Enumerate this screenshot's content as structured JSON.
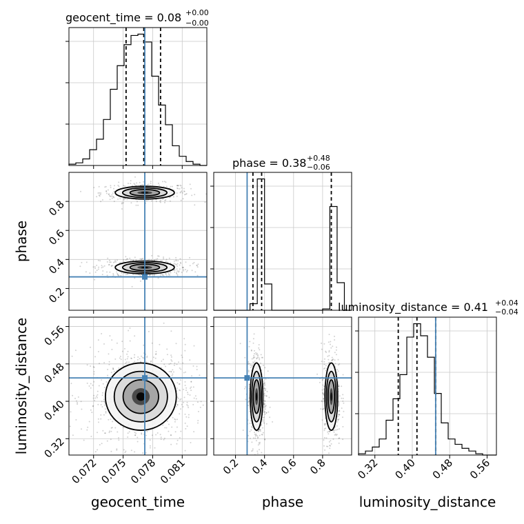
{
  "chart_data": {
    "type": "corner",
    "parameters": [
      "geocent_time",
      "phase",
      "luminosity_distance"
    ],
    "truths": {
      "geocent_time": 0.0772,
      "phase": 0.28,
      "luminosity_distance": 0.45
    },
    "titles": [
      {
        "param": "geocent_time",
        "text": "geocent_time = 0.08",
        "sup": "+0.00",
        "sub": "−0.00"
      },
      {
        "param": "phase",
        "text": "phase = 0.38",
        "sup": "+0.48",
        "sub": "−0.06"
      },
      {
        "param": "luminosity_distance",
        "text": "luminosity_distance = 0.41",
        "sup": "+0.04",
        "sub": "−0.04"
      }
    ],
    "axes": {
      "geocent_time": {
        "range": [
          0.0695,
          0.0835
        ],
        "ticks": [
          0.072,
          0.075,
          0.078,
          0.081
        ],
        "tick_labels": [
          "0.072",
          "0.075",
          "0.078",
          "0.081"
        ],
        "label": "geocent_time"
      },
      "phase": {
        "range": [
          0.05,
          1.0
        ],
        "ticks": [
          0.2,
          0.4,
          0.6,
          0.8
        ],
        "tick_labels": [
          "0.2",
          "0.4",
          "0.6",
          "0.8"
        ],
        "label": "phase"
      },
      "luminosity_distance": {
        "range": [
          0.285,
          0.58
        ],
        "ticks": [
          0.32,
          0.4,
          0.48,
          0.56
        ],
        "tick_labels": [
          "0.32",
          "0.40",
          "0.48",
          "0.56"
        ],
        "label": "luminosity_distance"
      }
    },
    "marginals": {
      "geocent_time": {
        "bin_edges": [
          0.0695,
          0.0702,
          0.0709,
          0.0716,
          0.0723,
          0.073,
          0.0737,
          0.0744,
          0.0751,
          0.0758,
          0.0765,
          0.0772,
          0.0779,
          0.0786,
          0.0793,
          0.08,
          0.0807,
          0.0814,
          0.0821,
          0.0828,
          0.0835
        ],
        "counts": [
          1,
          2,
          5,
          12,
          20,
          35,
          58,
          76,
          92,
          99,
          100,
          94,
          68,
          46,
          31,
          15,
          7,
          3,
          1,
          0
        ],
        "quantiles": [
          0.0753,
          0.0771,
          0.0788
        ]
      },
      "phase": {
        "bin_edges": [
          0.05,
          0.1,
          0.15,
          0.2,
          0.25,
          0.3,
          0.35,
          0.4,
          0.45,
          0.5,
          0.55,
          0.6,
          0.65,
          0.7,
          0.75,
          0.8,
          0.85,
          0.9,
          0.95,
          1.0
        ],
        "counts": [
          0,
          0,
          0,
          0,
          0,
          5,
          100,
          20,
          0,
          0,
          0,
          0,
          0,
          0,
          0,
          1,
          79,
          21,
          0
        ],
        "quantiles": [
          0.32,
          0.38,
          0.86
        ]
      },
      "luminosity_distance": {
        "bin_edges": [
          0.285,
          0.2998,
          0.3145,
          0.3293,
          0.344,
          0.3588,
          0.3735,
          0.3883,
          0.403,
          0.4178,
          0.4325,
          0.4473,
          0.462,
          0.4768,
          0.4915,
          0.5063,
          0.521,
          0.5358,
          0.5505,
          0.5653,
          0.58
        ],
        "counts": [
          1,
          3,
          6,
          12,
          26,
          42,
          60,
          88,
          98,
          89,
          73,
          46,
          24,
          12,
          8,
          5,
          3,
          1,
          0,
          0
        ],
        "quantiles": [
          0.37,
          0.41,
          0.45
        ]
      }
    },
    "joint_2d": [
      {
        "x": "geocent_time",
        "y": "phase",
        "modes": [
          {
            "x": 0.0772,
            "y": 0.86,
            "sx": 0.0015,
            "sy": 0.022,
            "weight": 0.45
          },
          {
            "x": 0.0772,
            "y": 0.345,
            "sx": 0.0015,
            "sy": 0.022,
            "weight": 0.55
          }
        ]
      },
      {
        "x": "geocent_time",
        "y": "luminosity_distance",
        "modes": [
          {
            "x": 0.0768,
            "y": 0.41,
            "sx": 0.0018,
            "sy": 0.036,
            "weight": 1.0
          }
        ]
      },
      {
        "x": "phase",
        "y": "luminosity_distance",
        "modes": [
          {
            "x": 0.345,
            "y": 0.41,
            "sx": 0.022,
            "sy": 0.036,
            "weight": 0.55
          },
          {
            "x": 0.86,
            "y": 0.41,
            "sx": 0.022,
            "sy": 0.036,
            "weight": 0.45
          }
        ]
      }
    ],
    "grid": true,
    "truth_color": "#4682b4",
    "line_color": "#000000",
    "grid_color": "#c8c8c8"
  }
}
